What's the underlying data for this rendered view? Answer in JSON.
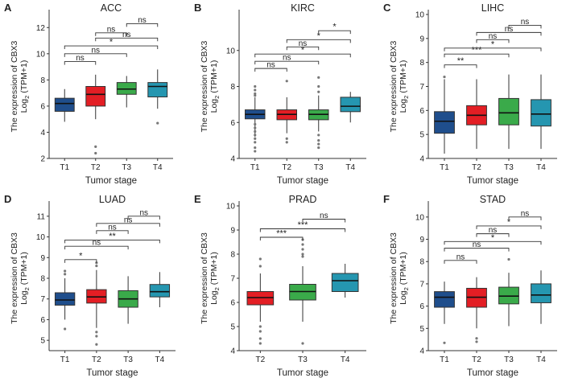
{
  "figure": {
    "ylabel_line1": "The expression of CBX3",
    "ylabel_line2": "Log2 (TPM+1)",
    "ylabel_line2_base": "Log",
    "ylabel_line2_sub": "2",
    "ylabel_line2_rest": " (TPM+1)",
    "xlabel": "Tumor stage"
  },
  "colors": {
    "T1": "#1f4e8c",
    "T2": "#e31e24",
    "T3": "#3aaa4a",
    "T4": "#2596b0"
  },
  "chart_data": [
    {
      "type": "box",
      "letter": "A",
      "title": "ACC",
      "categories": [
        "T1",
        "T2",
        "T3",
        "T4"
      ],
      "ylim": [
        2,
        13
      ],
      "yticks": [
        2,
        4,
        6,
        8,
        10,
        12
      ],
      "boxes": [
        {
          "q1": 5.6,
          "median": 6.2,
          "q3": 6.6,
          "lo": 4.8,
          "hi": 7.3,
          "out": []
        },
        {
          "q1": 6.0,
          "median": 6.9,
          "q3": 7.5,
          "lo": 5.0,
          "hi": 8.4,
          "out": [
            2.9,
            2.4
          ]
        },
        {
          "q1": 6.9,
          "median": 7.3,
          "q3": 7.8,
          "lo": 5.9,
          "hi": 8.3,
          "out": []
        },
        {
          "q1": 6.7,
          "median": 7.5,
          "q3": 7.8,
          "lo": 5.8,
          "hi": 8.8,
          "out": [
            4.7
          ]
        }
      ],
      "comparisons": [
        {
          "a": 1,
          "b": 2,
          "y": 9.4,
          "label": "ns"
        },
        {
          "a": 1,
          "b": 3,
          "y": 10.0,
          "label": "ns"
        },
        {
          "a": 1,
          "b": 4,
          "y": 10.6,
          "label": "*"
        },
        {
          "a": 2,
          "b": 4,
          "y": 11.2,
          "label": "ns"
        },
        {
          "a": 2,
          "b": 3,
          "y": 11.6,
          "label": "ns"
        },
        {
          "a": 3,
          "b": 4,
          "y": 12.3,
          "label": "ns"
        }
      ]
    },
    {
      "type": "box",
      "letter": "B",
      "title": "KIRC",
      "categories": [
        "T1",
        "T2",
        "T3",
        "T4"
      ],
      "ylim": [
        4,
        12
      ],
      "yticks": [
        4,
        6,
        8,
        10
      ],
      "boxes": [
        {
          "q1": 6.2,
          "median": 6.45,
          "q3": 6.7,
          "lo": 5.2,
          "hi": 7.4,
          "out": [
            8.0,
            7.8,
            7.6,
            7.5,
            5.9,
            5.7,
            5.5,
            5.3,
            5.1,
            4.9,
            4.6,
            4.4
          ]
        },
        {
          "q1": 6.15,
          "median": 6.45,
          "q3": 6.7,
          "lo": 5.4,
          "hi": 7.4,
          "out": [
            8.3,
            5.1,
            4.9
          ]
        },
        {
          "q1": 6.15,
          "median": 6.45,
          "q3": 6.7,
          "lo": 5.5,
          "hi": 7.5,
          "out": [
            8.5,
            8.0,
            7.7,
            5.3,
            5.0,
            4.8,
            4.6
          ]
        },
        {
          "q1": 6.6,
          "median": 6.9,
          "q3": 7.4,
          "lo": 6.0,
          "hi": 7.7,
          "out": []
        }
      ],
      "comparisons": [
        {
          "a": 1,
          "b": 2,
          "y": 9.0,
          "label": "ns"
        },
        {
          "a": 1,
          "b": 3,
          "y": 9.4,
          "label": "ns"
        },
        {
          "a": 1,
          "b": 4,
          "y": 9.8,
          "label": "*"
        },
        {
          "a": 2,
          "b": 3,
          "y": 10.2,
          "label": "ns"
        },
        {
          "a": 2,
          "b": 4,
          "y": 10.6,
          "label": "*"
        },
        {
          "a": 3,
          "b": 4,
          "y": 11.1,
          "label": "*"
        }
      ]
    },
    {
      "type": "box",
      "letter": "C",
      "title": "LIHC",
      "categories": [
        "T1",
        "T2",
        "T3",
        "T4"
      ],
      "ylim": [
        4,
        10
      ],
      "yticks": [
        4,
        5,
        6,
        7,
        8,
        9,
        10
      ],
      "boxes": [
        {
          "q1": 5.05,
          "median": 5.55,
          "q3": 5.95,
          "lo": 4.2,
          "hi": 7.3,
          "out": [
            7.4
          ]
        },
        {
          "q1": 5.4,
          "median": 5.8,
          "q3": 6.2,
          "lo": 4.4,
          "hi": 7.3,
          "out": []
        },
        {
          "q1": 5.4,
          "median": 5.9,
          "q3": 6.5,
          "lo": 4.4,
          "hi": 7.5,
          "out": []
        },
        {
          "q1": 5.35,
          "median": 5.85,
          "q3": 6.45,
          "lo": 4.4,
          "hi": 7.5,
          "out": []
        }
      ],
      "comparisons": [
        {
          "a": 1,
          "b": 2,
          "y": 7.9,
          "label": "**"
        },
        {
          "a": 1,
          "b": 3,
          "y": 8.35,
          "label": "***"
        },
        {
          "a": 1,
          "b": 4,
          "y": 8.6,
          "label": "*"
        },
        {
          "a": 2,
          "b": 3,
          "y": 8.95,
          "label": "ns"
        },
        {
          "a": 2,
          "b": 4,
          "y": 9.25,
          "label": "ns"
        },
        {
          "a": 3,
          "b": 4,
          "y": 9.55,
          "label": "ns"
        }
      ]
    },
    {
      "type": "box",
      "letter": "D",
      "title": "LUAD",
      "categories": [
        "T1",
        "T2",
        "T3",
        "T4"
      ],
      "ylim": [
        4.5,
        11.5
      ],
      "yticks": [
        5,
        6,
        7,
        8,
        9,
        10,
        11
      ],
      "boxes": [
        {
          "q1": 6.7,
          "median": 6.95,
          "q3": 7.3,
          "lo": 6.0,
          "hi": 8.0,
          "out": [
            8.35,
            8.2,
            5.55
          ]
        },
        {
          "q1": 6.8,
          "median": 7.1,
          "q3": 7.45,
          "lo": 5.6,
          "hi": 8.4,
          "out": [
            8.75,
            8.6,
            5.4,
            5.2,
            4.8
          ]
        },
        {
          "q1": 6.6,
          "median": 7.0,
          "q3": 7.4,
          "lo": 5.8,
          "hi": 8.1,
          "out": []
        },
        {
          "q1": 7.1,
          "median": 7.35,
          "q3": 7.7,
          "lo": 6.6,
          "hi": 8.3,
          "out": []
        }
      ],
      "comparisons": [
        {
          "a": 1,
          "b": 2,
          "y": 8.9,
          "label": "*"
        },
        {
          "a": 1,
          "b": 3,
          "y": 9.55,
          "label": "ns"
        },
        {
          "a": 1,
          "b": 4,
          "y": 9.85,
          "label": "**"
        },
        {
          "a": 2,
          "b": 3,
          "y": 10.3,
          "label": "ns"
        },
        {
          "a": 2,
          "b": 4,
          "y": 10.65,
          "label": "ns"
        },
        {
          "a": 3,
          "b": 4,
          "y": 11.0,
          "label": "ns"
        }
      ]
    },
    {
      "type": "box",
      "letter": "E",
      "title": "PRAD",
      "categories": [
        "T2",
        "T3",
        "T4"
      ],
      "colorKeys": [
        "T2",
        "T3",
        "T4"
      ],
      "ylim": [
        4,
        10
      ],
      "yticks": [
        4,
        5,
        6,
        7,
        8,
        9,
        10
      ],
      "boxes": [
        {
          "q1": 5.9,
          "median": 6.2,
          "q3": 6.45,
          "lo": 5.2,
          "hi": 7.2,
          "out": [
            7.8,
            7.5,
            5.0,
            4.8,
            4.5,
            4.3
          ]
        },
        {
          "q1": 6.1,
          "median": 6.45,
          "q3": 6.75,
          "lo": 5.2,
          "hi": 7.5,
          "out": [
            8.6,
            8.4,
            8.2,
            8.0,
            7.9,
            4.3
          ]
        },
        {
          "q1": 6.45,
          "median": 6.9,
          "q3": 7.2,
          "lo": 6.2,
          "hi": 7.6,
          "out": []
        }
      ],
      "comparisons": [
        {
          "a": 1,
          "b": 2,
          "y": 8.7,
          "label": "***"
        },
        {
          "a": 1,
          "b": 3,
          "y": 9.05,
          "label": "***"
        },
        {
          "a": 2,
          "b": 3,
          "y": 9.45,
          "label": "ns"
        }
      ]
    },
    {
      "type": "box",
      "letter": "F",
      "title": "STAD",
      "categories": [
        "T1",
        "T2",
        "T3",
        "T4"
      ],
      "ylim": [
        4,
        10.5
      ],
      "yticks": [
        4,
        5,
        6,
        7,
        8,
        9,
        10
      ],
      "boxes": [
        {
          "q1": 5.95,
          "median": 6.4,
          "q3": 6.65,
          "lo": 5.2,
          "hi": 7.1,
          "out": [
            4.35
          ]
        },
        {
          "q1": 5.95,
          "median": 6.4,
          "q3": 6.8,
          "lo": 5.0,
          "hi": 7.3,
          "out": [
            4.55,
            4.4
          ]
        },
        {
          "q1": 6.1,
          "median": 6.45,
          "q3": 6.85,
          "lo": 5.1,
          "hi": 7.5,
          "out": [
            8.1
          ]
        },
        {
          "q1": 6.15,
          "median": 6.5,
          "q3": 7.0,
          "lo": 5.2,
          "hi": 7.6,
          "out": []
        }
      ],
      "comparisons": [
        {
          "a": 1,
          "b": 2,
          "y": 8.05,
          "label": "ns"
        },
        {
          "a": 1,
          "b": 3,
          "y": 8.6,
          "label": "ns"
        },
        {
          "a": 1,
          "b": 4,
          "y": 8.9,
          "label": "*"
        },
        {
          "a": 2,
          "b": 3,
          "y": 9.25,
          "label": "ns"
        },
        {
          "a": 2,
          "b": 4,
          "y": 9.6,
          "label": "*"
        },
        {
          "a": 3,
          "b": 4,
          "y": 10.0,
          "label": "ns"
        }
      ]
    }
  ]
}
